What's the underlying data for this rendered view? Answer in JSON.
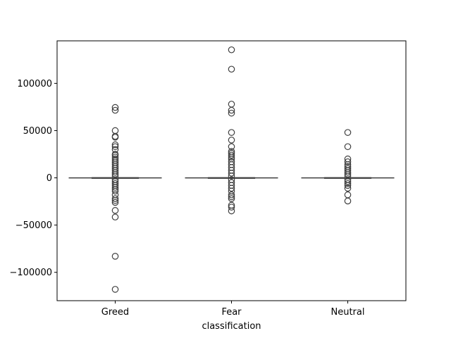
{
  "chart_data": {
    "type": "box",
    "title": "",
    "xlabel": "classification",
    "ylabel": "",
    "categories": [
      "Greed",
      "Fear",
      "Neutral"
    ],
    "ylim": [
      -130000,
      145000
    ],
    "yticks": [
      -100000,
      -50000,
      0,
      50000,
      100000
    ],
    "ytick_labels": [
      "−100000",
      "−50000",
      "0",
      "50000",
      "100000"
    ],
    "grid": false,
    "colors": {
      "line": "#3f3f3f",
      "box_fill": "#1f77b4"
    },
    "boxes": [
      {
        "name": "Greed",
        "q1": -200,
        "median": 0,
        "q3": 200,
        "whisker_low": -400,
        "whisker_high": 400,
        "outliers": [
          74500,
          71500,
          50000,
          44000,
          43000,
          35000,
          33000,
          30000,
          25000,
          24000,
          22000,
          20000,
          18000,
          16000,
          14000,
          12000,
          10000,
          8000,
          6000,
          4000,
          2000,
          -2000,
          -4000,
          -6000,
          -8000,
          -10000,
          -12000,
          -14000,
          -18000,
          -22000,
          -24000,
          -26000,
          -34500,
          -41500,
          -83000,
          -118000
        ]
      },
      {
        "name": "Fear",
        "q1": -200,
        "median": 0,
        "q3": 200,
        "whisker_low": -400,
        "whisker_high": 400,
        "outliers": [
          135500,
          115000,
          78000,
          71500,
          68500,
          48000,
          40000,
          33000,
          28000,
          26000,
          24000,
          22000,
          20000,
          17000,
          14000,
          11000,
          8000,
          5000,
          2000,
          -2000,
          -5000,
          -8000,
          -11000,
          -14000,
          -18000,
          -20000,
          -22000,
          -29000,
          -31000,
          -35000
        ]
      },
      {
        "name": "Neutral",
        "q1": -200,
        "median": 0,
        "q3": 200,
        "whisker_low": -400,
        "whisker_high": 400,
        "outliers": [
          48000,
          33000,
          20000,
          17000,
          14000,
          12000,
          10000,
          8000,
          6000,
          4000,
          2000,
          -2000,
          -4000,
          -6000,
          -8000,
          -11000,
          -18000,
          -24500
        ]
      }
    ]
  }
}
